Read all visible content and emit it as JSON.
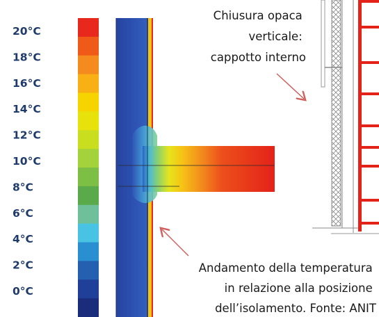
{
  "temperature_scale": {
    "labels": [
      "20°C",
      "18°C",
      "16°C",
      "14°C",
      "12°C",
      "10°C",
      "8°C",
      "6°C",
      "4°C",
      "2°C",
      "0°C"
    ],
    "colors": [
      "#e8281c",
      "#ef5a19",
      "#f58a1f",
      "#f9b015",
      "#f6d400",
      "#e8e20c",
      "#c8de1e",
      "#a4d23a",
      "#7dbf45",
      "#5aaa4b",
      "#6fc09a",
      "#48c3e4",
      "#2a8fd1",
      "#255fb0",
      "#1f3f98",
      "#1b2c7c"
    ]
  },
  "annotations": {
    "wall_label": [
      "Chiusura opaca",
      "verticale:",
      "cappotto interno"
    ],
    "caption": [
      "Andamento della temperatura",
      "in relazione alla posizione",
      "dell’isolamento. Fonte: ANIT"
    ]
  },
  "colors": {
    "red": "#e32219",
    "navy_text": "#1f3b6a",
    "arrow": "#d0605e",
    "wall_blue": "#2f55b4"
  }
}
